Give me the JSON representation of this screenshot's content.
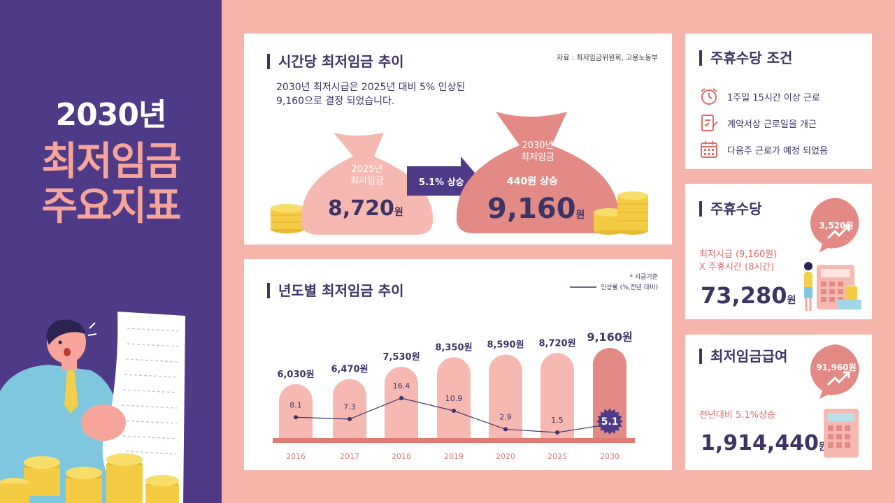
{
  "hero": {
    "year": "2030년",
    "line2": "최저임금",
    "line3": "주요지표"
  },
  "hourly": {
    "title": "시간당 최저임금 추이",
    "source": "자료 : 최저임금위원회, 고용노동부",
    "desc1": "2030년 최저시급은 2025년 대비 5% 인상된",
    "desc2": "9,160으로 결정 되었습니다.",
    "bag_left_l1": "2025년",
    "bag_left_l2": "최저임금",
    "bag_left_amount": "8,720",
    "bag_right_l1": "2030년",
    "bag_right_l2": "최저임금",
    "bag_right_increase": "440원 상승",
    "bag_right_amount": "9,160",
    "unit": "원",
    "arrow_label": "5.1% 상승"
  },
  "yearly": {
    "title": "년도별 최저임금 추이",
    "note": "* 시급기준",
    "legend": "인상률 (%,전년 대비)"
  },
  "chart_data": {
    "type": "bar",
    "categories": [
      "2016",
      "2017",
      "2018",
      "2019",
      "2020",
      "2025",
      "2030"
    ],
    "values": [
      6030,
      6470,
      7530,
      8350,
      8590,
      8720,
      9160
    ],
    "value_labels": [
      "6,030원",
      "6,470원",
      "7,530원",
      "8,350원",
      "8,590원",
      "8,720원",
      "9,160원"
    ],
    "series": [
      {
        "name": "인상률 (%,전년 대비)",
        "values": [
          8.1,
          7.3,
          16.4,
          10.9,
          2.9,
          1.5,
          5.1
        ]
      }
    ],
    "title": "년도별 최저임금 추이",
    "highlight_index": 6,
    "colors": {
      "bar": "#f6b9b1",
      "bar_highlight": "#e38a84",
      "line": "#3d3466",
      "base": "#e07b74"
    }
  },
  "holiday_cond": {
    "title": "주휴수당 조건",
    "items": [
      {
        "icon": "alarm-clock-icon",
        "label": "1주일 15시간 이상 근로"
      },
      {
        "icon": "contract-edit-icon",
        "label": "계약서상 근로일을 개근"
      },
      {
        "icon": "calendar-icon",
        "label": "다음주 근로가 예정 되었음"
      }
    ]
  },
  "holiday_pay": {
    "title": "주휴수당",
    "bubble": "3,520원",
    "formula1": "최저시급 (9,160원)",
    "formula2": "X 주휴시간 (8시간)",
    "amount": "73,280",
    "unit": "원"
  },
  "min_wage_pay": {
    "title": "최저임금급여",
    "bubble": "91,960원",
    "desc": "전년대비 5.1%상승",
    "amount": "1,914,440",
    "unit": "원"
  },
  "colors": {
    "background": "#f5b5ab",
    "left_panel": "#4e3a87",
    "navy": "#3d3466",
    "accent": "#e38a84"
  }
}
